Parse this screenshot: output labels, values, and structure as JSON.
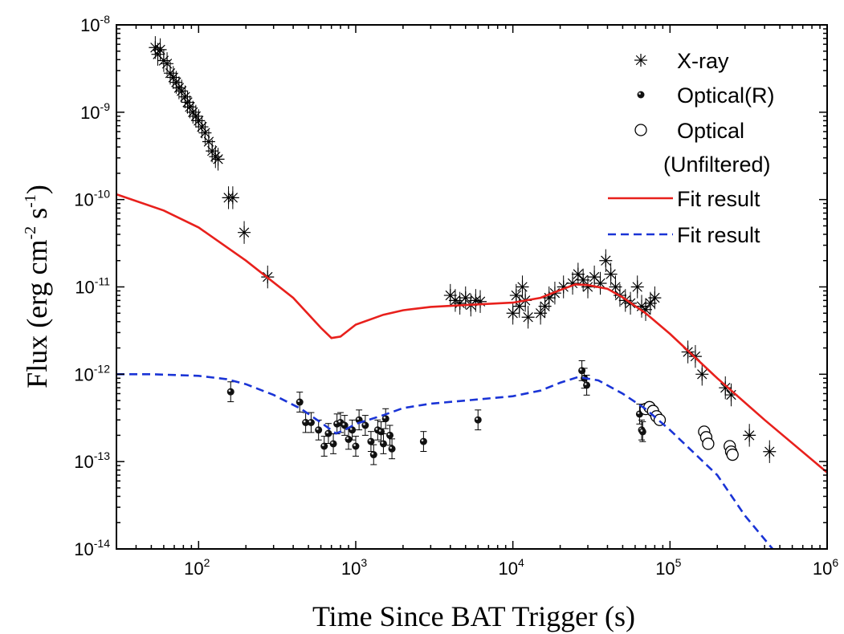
{
  "chart_data": {
    "type": "scatter",
    "xlabel": "Time Since  BAT Trigger (s)",
    "ylabel": "Flux (erg cm",
    "ylabel_parts": {
      "cm_exp": "-2",
      "s": " s",
      "s_exp": "-1",
      "close": ")"
    },
    "x_scale": "log",
    "y_scale": "log",
    "xlim": [
      30,
      1000000
    ],
    "ylim": [
      1e-14,
      1e-08
    ],
    "x_ticks": [
      {
        "value": 100,
        "base": "10",
        "exp": "2"
      },
      {
        "value": 1000,
        "base": "10",
        "exp": "3"
      },
      {
        "value": 10000,
        "base": "10",
        "exp": "4"
      },
      {
        "value": 100000,
        "base": "10",
        "exp": "5"
      },
      {
        "value": 1000000,
        "base": "10",
        "exp": "6"
      }
    ],
    "y_ticks": [
      {
        "value": 1e-14,
        "base": "10",
        "exp": "-14"
      },
      {
        "value": 1e-13,
        "base": "10",
        "exp": "-13"
      },
      {
        "value": 1e-12,
        "base": "10",
        "exp": "-12"
      },
      {
        "value": 1e-11,
        "base": "10",
        "exp": "-11"
      },
      {
        "value": 1e-10,
        "base": "10",
        "exp": "-10"
      },
      {
        "value": 1e-09,
        "base": "10",
        "exp": "-9"
      },
      {
        "value": 1e-08,
        "base": "10",
        "exp": "-8"
      }
    ],
    "legend_position": "top-right",
    "legend": [
      {
        "label": "X-ray",
        "marker": "asterisk"
      },
      {
        "label": "Optical(R)",
        "marker": "filled-dot"
      },
      {
        "label": "Optical",
        "label2": "(Unfiltered)",
        "marker": "open-circle"
      },
      {
        "label": "Fit result",
        "marker": "line",
        "color": "#e8201c"
      },
      {
        "label": "Fit result",
        "marker": "dashed-line",
        "color": "#1a34d6"
      }
    ],
    "series": [
      {
        "name": "X-ray",
        "marker": "asterisk",
        "color": "#000000",
        "points": [
          [
            53,
            5.5e-09
          ],
          [
            55,
            4.6e-09
          ],
          [
            57,
            5.2e-09
          ],
          [
            60,
            3.9e-09
          ],
          [
            63,
            3.6e-09
          ],
          [
            66,
            2.8e-09
          ],
          [
            69,
            2.5e-09
          ],
          [
            72,
            2.2e-09
          ],
          [
            75,
            1.9e-09
          ],
          [
            78,
            1.75e-09
          ],
          [
            82,
            1.5e-09
          ],
          [
            85,
            1.3e-09
          ],
          [
            88,
            1.15e-09
          ],
          [
            92,
            1e-09
          ],
          [
            96,
            9e-10
          ],
          [
            100,
            8e-10
          ],
          [
            105,
            6.8e-10
          ],
          [
            110,
            5.8e-10
          ],
          [
            116,
            4.6e-10
          ],
          [
            122,
            3.6e-10
          ],
          [
            128,
            3.1e-10
          ],
          [
            133,
            2.9e-10
          ],
          [
            155,
            1.05e-10
          ],
          [
            165,
            1.05e-10
          ],
          [
            195,
            4.2e-11
          ],
          [
            275,
            1.3e-11
          ],
          [
            4000,
            8e-12
          ],
          [
            4300,
            7e-12
          ],
          [
            4600,
            6.5e-12
          ],
          [
            5000,
            7.5e-12
          ],
          [
            5400,
            6.2e-12
          ],
          [
            5800,
            7e-12
          ],
          [
            6200,
            6.8e-12
          ],
          [
            10000,
            5e-12
          ],
          [
            10500,
            8e-12
          ],
          [
            11000,
            6e-12
          ],
          [
            11500,
            1e-11
          ],
          [
            12000,
            7e-12
          ],
          [
            12500,
            4.5e-12
          ],
          [
            15000,
            5e-12
          ],
          [
            16000,
            6e-12
          ],
          [
            17000,
            7.5e-12
          ],
          [
            18500,
            8.5e-12
          ],
          [
            21000,
            1e-11
          ],
          [
            24000,
            1.1e-11
          ],
          [
            26000,
            1.4e-11
          ],
          [
            28000,
            1.2e-11
          ],
          [
            30000,
            1e-11
          ],
          [
            33000,
            1.3e-11
          ],
          [
            36000,
            1.1e-11
          ],
          [
            39000,
            2e-11
          ],
          [
            42000,
            1.4e-11
          ],
          [
            45000,
            1e-11
          ],
          [
            48000,
            8e-12
          ],
          [
            52000,
            7e-12
          ],
          [
            56000,
            6.5e-12
          ],
          [
            62000,
            1e-11
          ],
          [
            66000,
            6e-12
          ],
          [
            70000,
            5.5e-12
          ],
          [
            75000,
            6.5e-12
          ],
          [
            80000,
            7.5e-12
          ],
          [
            130000,
            1.8e-12
          ],
          [
            145000,
            1.6e-12
          ],
          [
            160000,
            1e-12
          ],
          [
            225000,
            7e-13
          ],
          [
            245000,
            5.8e-13
          ],
          [
            320000,
            2e-13
          ],
          [
            430000,
            1.3e-13
          ]
        ]
      },
      {
        "name": "Optical(R)",
        "marker": "filled-dot",
        "color": "#000000",
        "points": [
          [
            160,
            6.3e-13
          ],
          [
            440,
            4.8e-13
          ],
          [
            480,
            2.8e-13
          ],
          [
            520,
            2.8e-13
          ],
          [
            580,
            2.3e-13
          ],
          [
            630,
            1.5e-13
          ],
          [
            670,
            2.1e-13
          ],
          [
            720,
            1.6e-13
          ],
          [
            760,
            2.7e-13
          ],
          [
            800,
            2.8e-13
          ],
          [
            850,
            2.6e-13
          ],
          [
            900,
            1.8e-13
          ],
          [
            950,
            2.3e-13
          ],
          [
            1000,
            1.5e-13
          ],
          [
            1050,
            3e-13
          ],
          [
            1150,
            2.6e-13
          ],
          [
            1250,
            1.7e-13
          ],
          [
            1300,
            1.2e-13
          ],
          [
            1380,
            2.3e-13
          ],
          [
            1450,
            2.2e-13
          ],
          [
            1500,
            1.6e-13
          ],
          [
            1550,
            3.1e-13
          ],
          [
            1650,
            2e-13
          ],
          [
            1700,
            1.4e-13
          ],
          [
            2700,
            1.7e-13
          ],
          [
            6000,
            3e-13
          ],
          [
            27500,
            1.1e-12
          ],
          [
            28500,
            9e-13
          ],
          [
            29500,
            7.5e-13
          ],
          [
            64000,
            3.5e-13
          ],
          [
            66000,
            2.3e-13
          ],
          [
            67000,
            2.2e-13
          ]
        ]
      },
      {
        "name": "Optical (Unfiltered)",
        "marker": "open-circle",
        "color": "#000000",
        "points": [
          [
            70000,
            4e-13
          ],
          [
            74000,
            4.2e-13
          ],
          [
            78000,
            3.8e-13
          ],
          [
            82000,
            3.3e-13
          ],
          [
            86000,
            3e-13
          ],
          [
            165000,
            2.2e-13
          ],
          [
            170000,
            1.9e-13
          ],
          [
            175000,
            1.6e-13
          ],
          [
            240000,
            1.5e-13
          ],
          [
            245000,
            1.3e-13
          ],
          [
            250000,
            1.2e-13
          ]
        ]
      },
      {
        "name": "Fit result",
        "marker": "line",
        "color": "#e8201c",
        "points": [
          [
            30,
            1.15e-10
          ],
          [
            60,
            7.5e-11
          ],
          [
            100,
            4.8e-11
          ],
          [
            200,
            2e-11
          ],
          [
            400,
            7.5e-12
          ],
          [
            600,
            3.4e-12
          ],
          [
            700,
            2.6e-12
          ],
          [
            800,
            2.7e-12
          ],
          [
            1000,
            3.7e-12
          ],
          [
            1500,
            4.8e-12
          ],
          [
            2000,
            5.4e-12
          ],
          [
            3000,
            5.9e-12
          ],
          [
            5000,
            6.2e-12
          ],
          [
            10000,
            6.6e-12
          ],
          [
            15000,
            7.5e-12
          ],
          [
            20000,
            9.2e-12
          ],
          [
            25000,
            1.07e-11
          ],
          [
            30000,
            1.05e-11
          ],
          [
            40000,
            9.5e-12
          ],
          [
            50000,
            7.6e-12
          ],
          [
            70000,
            5e-12
          ],
          [
            100000,
            2.9e-12
          ],
          [
            200000,
            9e-13
          ],
          [
            400000,
            3e-13
          ],
          [
            1000000,
            7.5e-14
          ]
        ]
      },
      {
        "name": "Fit result",
        "marker": "dashed-line",
        "color": "#1a34d6",
        "points": [
          [
            30,
            1e-12
          ],
          [
            50,
            1e-12
          ],
          [
            100,
            9.6e-13
          ],
          [
            150,
            8.8e-13
          ],
          [
            200,
            7.7e-13
          ],
          [
            300,
            5.8e-13
          ],
          [
            450,
            4e-13
          ],
          [
            600,
            2.8e-13
          ],
          [
            750,
            2.1e-13
          ],
          [
            850,
            2.3e-13
          ],
          [
            1000,
            2.7e-13
          ],
          [
            1500,
            3.4e-13
          ],
          [
            2000,
            4.1e-13
          ],
          [
            3000,
            4.6e-13
          ],
          [
            5000,
            5e-13
          ],
          [
            10000,
            5.6e-13
          ],
          [
            15000,
            6.5e-13
          ],
          [
            20000,
            8e-13
          ],
          [
            26000,
            9.3e-13
          ],
          [
            35000,
            8.5e-13
          ],
          [
            50000,
            6e-13
          ],
          [
            70000,
            4e-13
          ],
          [
            100000,
            2.3e-13
          ],
          [
            200000,
            7e-14
          ],
          [
            300000,
            2.4e-14
          ],
          [
            450000,
            1e-14
          ]
        ]
      }
    ]
  }
}
